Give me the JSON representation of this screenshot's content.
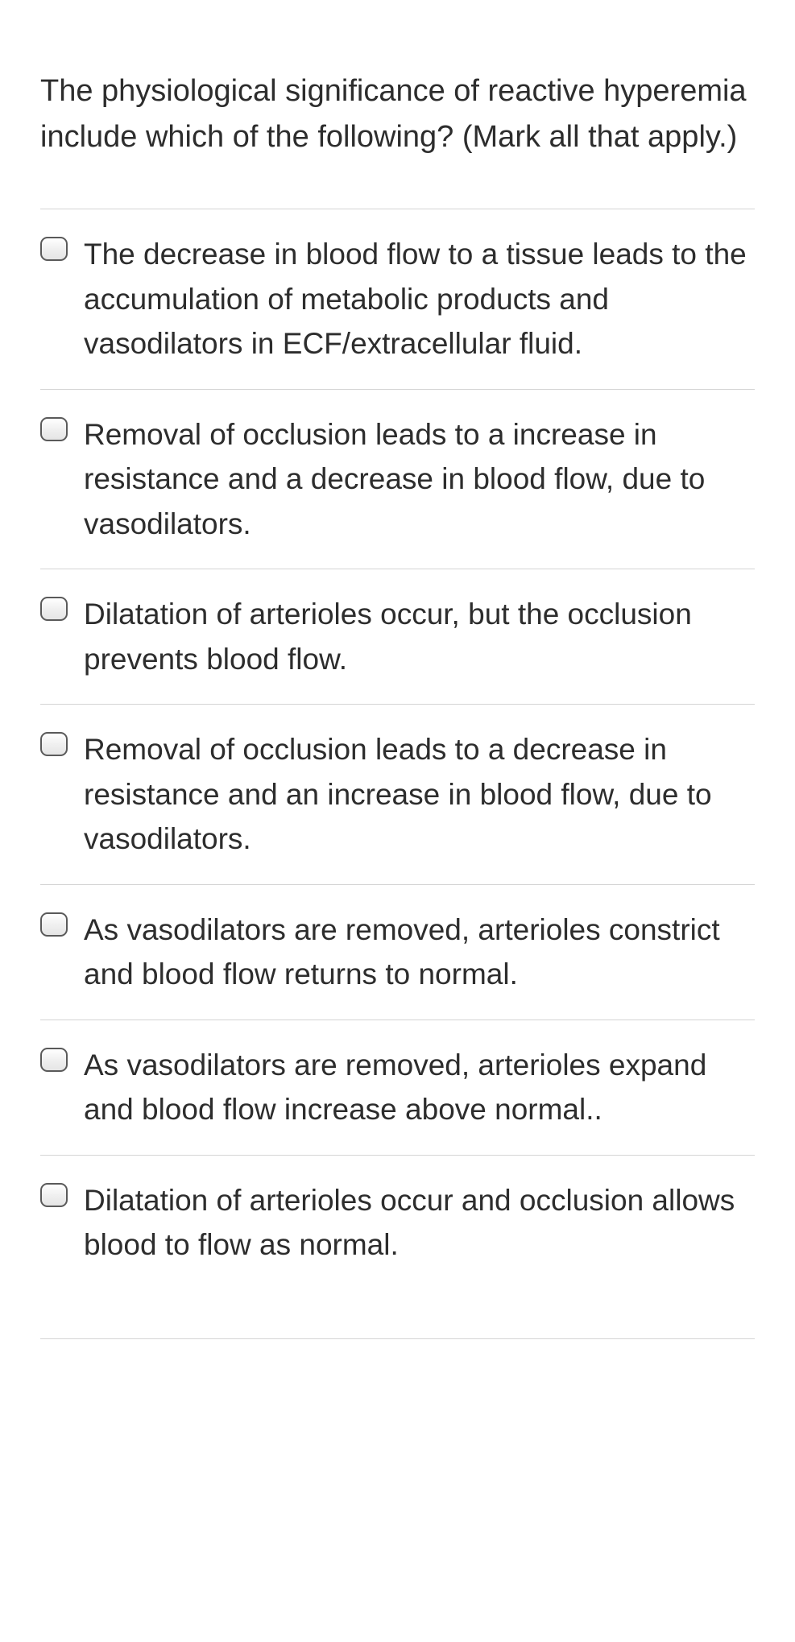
{
  "question": {
    "text": "The physiological significance of reactive hyperemia include which of the following?  (Mark all that apply.)"
  },
  "options": [
    {
      "text": "The decrease in blood flow to a tissue leads to the accumulation of metabolic products and vasodilators in ECF/extracellular fluid.",
      "checked": false
    },
    {
      "text": "Removal of occlusion leads to a increase in resistance and a decrease in blood flow, due to vasodilators.",
      "checked": false
    },
    {
      "text": "Dilatation of arterioles occur, but the occlusion prevents blood flow.",
      "checked": false
    },
    {
      "text": "Removal of occlusion leads to a decrease in resistance and an increase in blood flow, due to vasodilators.",
      "checked": false
    },
    {
      "text": "As vasodilators are removed, arterioles constrict and blood flow returns to normal.",
      "checked": false
    },
    {
      "text": "As vasodilators are removed, arterioles expand and blood flow increase above normal..",
      "checked": false
    },
    {
      "text": "Dilatation of arterioles occur and occlusion allows blood to flow as normal.",
      "checked": false
    }
  ],
  "styling": {
    "background_color": "#ffffff",
    "text_color": "#2d2d2d",
    "border_color": "#d4d4d4",
    "checkbox_border_color": "#5a5a5a",
    "question_fontsize": 38,
    "option_fontsize": 37,
    "checkbox_width": 34,
    "checkbox_height": 30,
    "checkbox_radius": 9
  }
}
